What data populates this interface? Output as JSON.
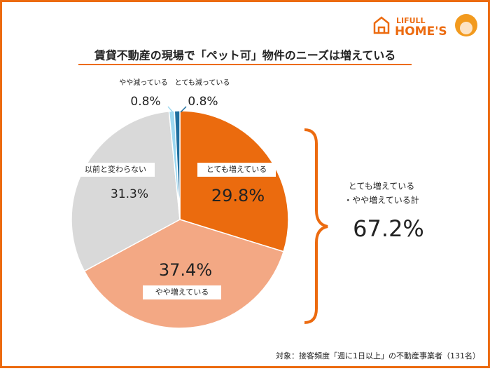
{
  "logo": {
    "top": "LIFULL",
    "bottom": "HOME'S"
  },
  "chart_data": {
    "type": "pie",
    "title": "賃貸不動産の現場で「ペット可」物件のニーズは増えている",
    "categories": [
      "とても増えている",
      "やや増えている",
      "以前と変わらない",
      "やや減っている",
      "とても減っている"
    ],
    "values": [
      29.8,
      37.4,
      31.3,
      0.8,
      0.8
    ],
    "value_labels": [
      "29.8%",
      "37.4%",
      "31.3%",
      "0.8%",
      "0.8%"
    ],
    "colors": [
      "#eb6b0e",
      "#f3a884",
      "#d9d9d9",
      "#9fd8f0",
      "#1f6f9f"
    ],
    "annotation": {
      "label_lines": [
        "とても増えている",
        "・やや増えている計"
      ],
      "value": "67.2%"
    },
    "footnote": "対象：接客頻度「週に1日以上」の不動産事業者（131名）"
  }
}
